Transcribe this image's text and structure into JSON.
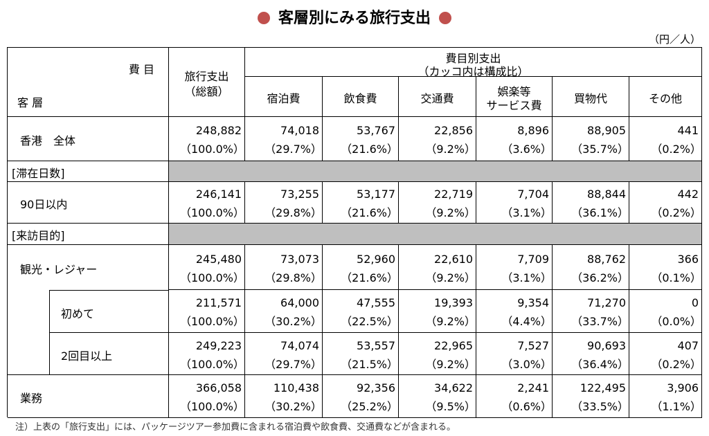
{
  "title": "客層別にみる旅行支出",
  "unit": "（円／人）",
  "header": {
    "corner_top": "費 目",
    "corner_bottom": "客 層",
    "total": [
      "旅行支出",
      "（総額）"
    ],
    "group": [
      "費目別支出",
      "（カッコ内は構成比）"
    ],
    "columns": [
      [
        "宿泊費"
      ],
      [
        "飲食費"
      ],
      [
        "交通費"
      ],
      [
        "娯楽等",
        "サービス費"
      ],
      [
        "買物代"
      ],
      [
        "その他"
      ]
    ]
  },
  "rows": [
    {
      "label": "香港　全体",
      "values": [
        [
          "248,882",
          "（100.0%）"
        ],
        [
          "74,018",
          "（29.7%）"
        ],
        [
          "53,767",
          "（21.6%）"
        ],
        [
          "22,856",
          "（9.2%）"
        ],
        [
          "8,896",
          "（3.6%）"
        ],
        [
          "88,905",
          "（35.7%）"
        ],
        [
          "441",
          "（0.2%）"
        ]
      ]
    },
    {
      "section": "[滞在日数]"
    },
    {
      "label": "90日以内",
      "values": [
        [
          "246,141",
          "（100.0%）"
        ],
        [
          "73,255",
          "（29.8%）"
        ],
        [
          "53,177",
          "（21.6%）"
        ],
        [
          "22,719",
          "（9.2%）"
        ],
        [
          "7,704",
          "（3.1%）"
        ],
        [
          "88,844",
          "（36.1%）"
        ],
        [
          "442",
          "（0.2%）"
        ]
      ]
    },
    {
      "section": "[来訪目的]"
    },
    {
      "label": "観光・レジャー",
      "values": [
        [
          "245,480",
          "（100.0%）"
        ],
        [
          "73,073",
          "（29.8%）"
        ],
        [
          "52,960",
          "（21.6%）"
        ],
        [
          "22,610",
          "（9.2%）"
        ],
        [
          "7,709",
          "（3.1%）"
        ],
        [
          "88,762",
          "（36.2%）"
        ],
        [
          "366",
          "（0.1%）"
        ]
      ]
    },
    {
      "label": "初めて",
      "indent": true,
      "values": [
        [
          "211,571",
          "（100.0%）"
        ],
        [
          "64,000",
          "（30.2%）"
        ],
        [
          "47,555",
          "（22.5%）"
        ],
        [
          "19,393",
          "（9.2%）"
        ],
        [
          "9,354",
          "（4.4%）"
        ],
        [
          "71,270",
          "（33.7%）"
        ],
        [
          "0",
          "（0.0%）"
        ]
      ]
    },
    {
      "label": "2回目以上",
      "indent": true,
      "values": [
        [
          "249,223",
          "（100.0%）"
        ],
        [
          "74,074",
          "（29.7%）"
        ],
        [
          "53,557",
          "（21.5%）"
        ],
        [
          "22,965",
          "（9.2%）"
        ],
        [
          "7,527",
          "（3.0%）"
        ],
        [
          "90,693",
          "（36.4%）"
        ],
        [
          "407",
          "（0.2%）"
        ]
      ]
    },
    {
      "label": "業務",
      "values": [
        [
          "366,058",
          "（100.0%）"
        ],
        [
          "110,438",
          "（30.2%）"
        ],
        [
          "92,356",
          "（25.2%）"
        ],
        [
          "34,622",
          "（9.5%）"
        ],
        [
          "2,241",
          "（0.6%）"
        ],
        [
          "122,495",
          "（33.5%）"
        ],
        [
          "3,906",
          "（1.1%）"
        ]
      ]
    }
  ],
  "note": "注）上表の「旅行支出」には、パッケージツアー参加費に含まれる宿泊費や飲食費、交通費などが含まれる。"
}
